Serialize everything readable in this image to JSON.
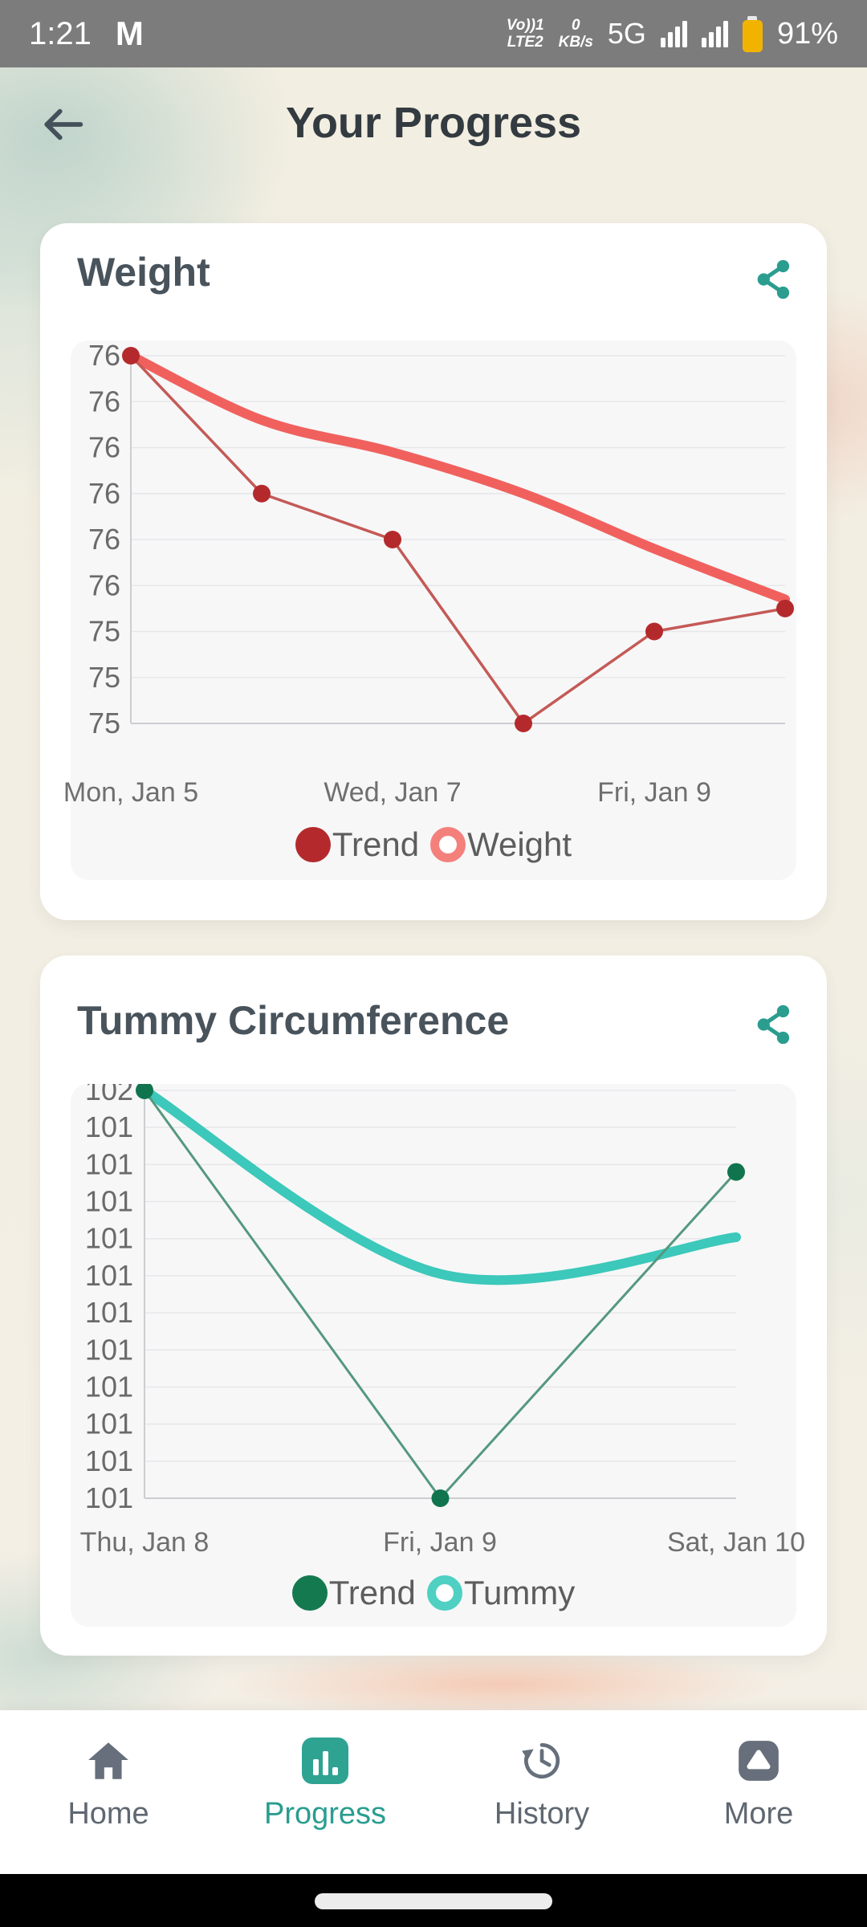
{
  "status_bar": {
    "time": "1:21",
    "gmail_icon": "M",
    "volte_top": "Vo))1",
    "volte_bottom": "LTE2",
    "data_rate_top": "0",
    "data_rate_bottom": "KB/s",
    "network": "5G",
    "battery_percent": "91%"
  },
  "header": {
    "back_icon": "←",
    "title": "Your Progress"
  },
  "chart_data": [
    {
      "type": "line",
      "title": "Weight",
      "x": [
        "Mon, Jan 5",
        "Tue, Jan 6",
        "Wed, Jan 7",
        "Thu, Jan 8",
        "Fri, Jan 9",
        "Sat, Jan 10"
      ],
      "x_labels_shown": [
        "Mon, Jan 5",
        "Wed, Jan 7",
        "Fri, Jan 9"
      ],
      "ylim": [
        75.2,
        76.0
      ],
      "ytick_labels": [
        "76",
        "76",
        "76",
        "76",
        "76",
        "76",
        "75",
        "75",
        "75"
      ],
      "grid": true,
      "legend_position": "bottom",
      "series": [
        {
          "name": "Trend",
          "style": "trend",
          "smooth": true,
          "color": "#f0615e",
          "line_width": 12,
          "values": [
            76.0,
            75.86,
            75.79,
            75.7,
            75.58,
            75.47
          ]
        },
        {
          "name": "Weight",
          "style": "data",
          "smooth": false,
          "color": "#c45a56",
          "dot_color": "#b42a2c",
          "line_width": 3.5,
          "values": [
            76.0,
            75.7,
            75.6,
            75.2,
            75.4,
            75.45
          ]
        }
      ],
      "legend": [
        {
          "label": "Trend",
          "marker": "filled-circle",
          "color": "#b42a2c"
        },
        {
          "label": "Weight",
          "marker": "ring",
          "color": "#f4807c"
        }
      ]
    },
    {
      "type": "line",
      "title": "Tummy Circumference",
      "x": [
        "Thu, Jan 8",
        "Fri, Jan 9",
        "Sat, Jan 10"
      ],
      "x_labels_shown": [
        "Thu, Jan 8",
        "Fri, Jan 9",
        "Sat, Jan 10"
      ],
      "ylim": [
        101.0,
        102.0
      ],
      "ytick_labels": [
        "102",
        "101",
        "101",
        "101",
        "101",
        "101",
        "101",
        "101",
        "101",
        "101",
        "101",
        "101"
      ],
      "grid": true,
      "legend_position": "bottom",
      "series": [
        {
          "name": "Trend",
          "style": "trend",
          "smooth": true,
          "color": "#3cc8ba",
          "line_width": 12,
          "values": [
            102.0,
            101.55,
            101.64
          ]
        },
        {
          "name": "Tummy",
          "style": "data",
          "smooth": false,
          "color": "#55987e",
          "dot_color": "#10754e",
          "line_width": 3,
          "values": [
            102.0,
            101.0,
            101.8
          ]
        }
      ],
      "legend": [
        {
          "label": "Trend",
          "marker": "filled-circle",
          "color": "#14794f"
        },
        {
          "label": "Tummy",
          "marker": "ring",
          "color": "#4fd0c3"
        }
      ]
    }
  ],
  "nav": {
    "active_color": "#2a9d8f",
    "inactive_color": "#5f6771",
    "items": [
      {
        "label": "Home",
        "active": false
      },
      {
        "label": "Progress",
        "active": true
      },
      {
        "label": "History",
        "active": false
      },
      {
        "label": "More",
        "active": false
      }
    ]
  },
  "colors": {
    "accent_teal": "#2a9d8f",
    "status_bar_bg": "#7c7c7c",
    "card_bg": "#ffffff",
    "panel_bg": "#f7f7f8",
    "battery": "#f2b300"
  }
}
